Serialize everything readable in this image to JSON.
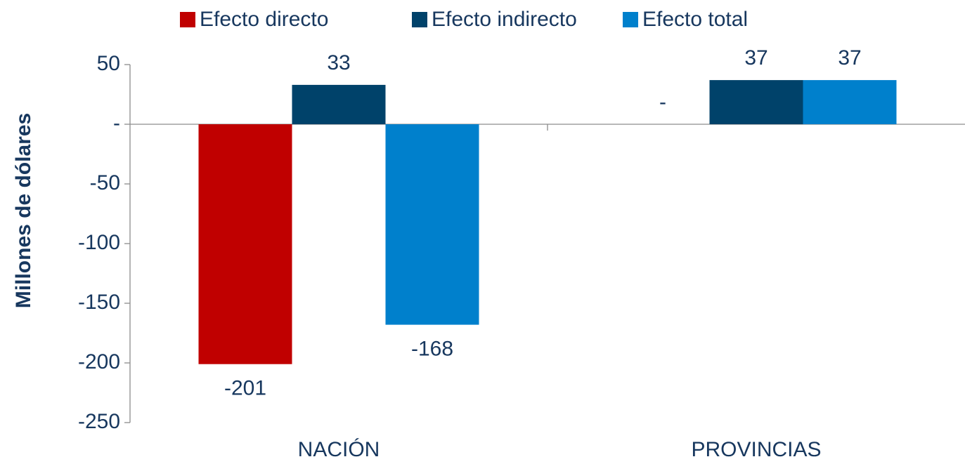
{
  "chart_data": {
    "type": "bar",
    "y_label": "Millones de dólares",
    "categories": [
      "NACIÓN",
      "PROVINCIAS"
    ],
    "series": [
      {
        "name": "Efecto directo",
        "color": "#c00000",
        "values": [
          -201,
          0
        ],
        "value_labels": [
          "-201",
          "-"
        ]
      },
      {
        "name": "Efecto indirecto",
        "color": "#00426a",
        "values": [
          33,
          37
        ]
      },
      {
        "name": "Efecto total",
        "color": "#0080cc",
        "values": [
          -168,
          37
        ]
      }
    ],
    "ylim": [
      -250,
      50
    ],
    "yticks": [
      50,
      {
        "value": 0,
        "label": "-"
      },
      -50,
      -100,
      -150,
      -200,
      -250
    ],
    "legend": "top"
  }
}
